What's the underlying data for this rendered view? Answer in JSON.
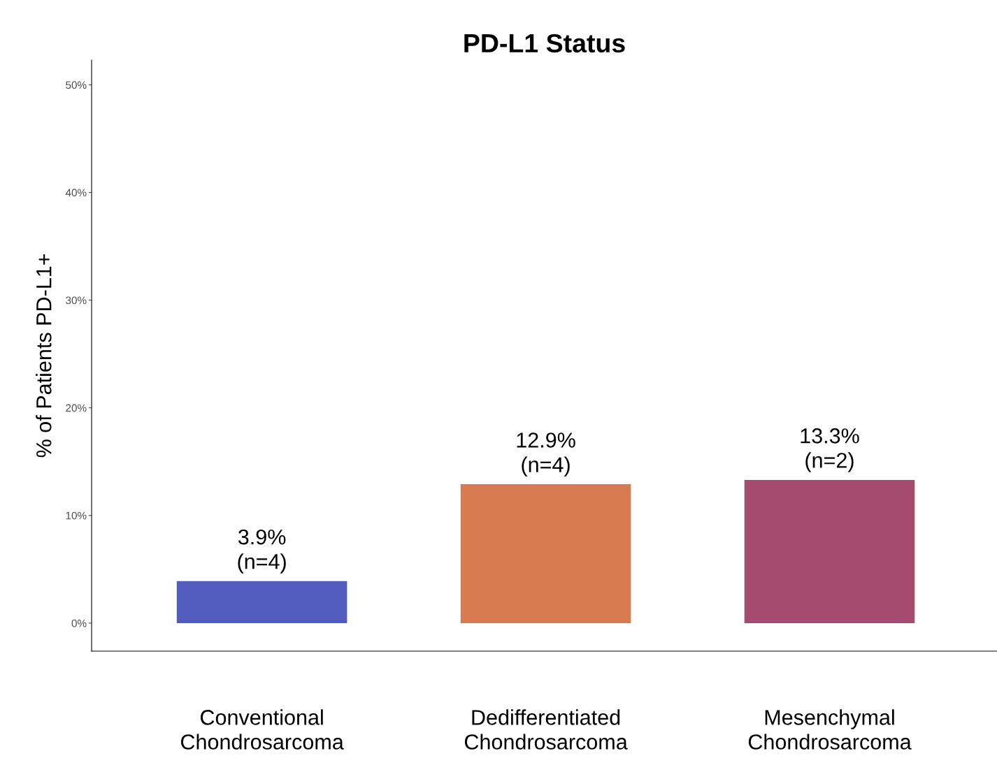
{
  "chart_data": {
    "type": "bar",
    "title": "PD-L1 Status",
    "ylabel": "% of Patients PD-L1+",
    "categories": [
      "Conventional\nChondrosarcoma",
      "Dedifferentiated\nChondrosarcoma",
      "Mesenchymal\nChondrosarcoma"
    ],
    "values": [
      3.9,
      12.9,
      13.3
    ],
    "colors": [
      "#525cbf",
      "#d97b51",
      "#a64b70"
    ],
    "value_labels": [
      "3.9%\n(n=4)",
      "12.9%\n(n=4)",
      "13.3%\n(n=2)"
    ],
    "ylim": [
      -2.6,
      52.3
    ],
    "yticks": [
      {
        "value": 0,
        "label": "0%"
      },
      {
        "value": 10,
        "label": "10%"
      },
      {
        "value": 20,
        "label": "20%"
      },
      {
        "value": 30,
        "label": "30%"
      },
      {
        "value": 40,
        "label": "40%"
      },
      {
        "value": 50,
        "label": "50%"
      }
    ],
    "grid": false,
    "legend": false
  }
}
